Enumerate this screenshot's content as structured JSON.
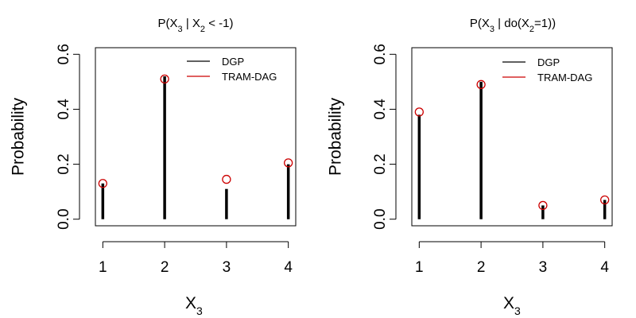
{
  "colors": {
    "dgp": "#000000",
    "tram_dag": "#cc0000"
  },
  "chart_data": [
    {
      "type": "bar",
      "title_parts": [
        "P(X",
        "3",
        " | X",
        "2",
        " < -1)"
      ],
      "xlabel": "X",
      "xlabel_sub": "3",
      "ylabel": "Probability",
      "categories": [
        "1",
        "2",
        "3",
        "4"
      ],
      "xlim": [
        1,
        4
      ],
      "ylim": [
        0,
        0.6
      ],
      "y_ticks": [
        "0.0",
        "0.2",
        "0.4",
        "0.6"
      ],
      "grid": false,
      "legend_position": "top-right",
      "series": [
        {
          "name": "DGP",
          "style": "vertical-lines",
          "values": [
            0.13,
            0.52,
            0.11,
            0.2
          ]
        },
        {
          "name": "TRAM-DAG",
          "style": "open-circles",
          "values": [
            0.13,
            0.51,
            0.145,
            0.205
          ]
        }
      ]
    },
    {
      "type": "bar",
      "title_parts": [
        "P(X",
        "3",
        " | do(X",
        "2",
        "=1))"
      ],
      "xlabel": "X",
      "xlabel_sub": "3",
      "ylabel": "Probability",
      "categories": [
        "1",
        "2",
        "3",
        "4"
      ],
      "xlim": [
        1,
        4
      ],
      "ylim": [
        0,
        0.6
      ],
      "y_ticks": [
        "0.0",
        "0.2",
        "0.4",
        "0.6"
      ],
      "grid": false,
      "legend_position": "top-right",
      "series": [
        {
          "name": "DGP",
          "style": "vertical-lines",
          "values": [
            0.38,
            0.5,
            0.05,
            0.07
          ]
        },
        {
          "name": "TRAM-DAG",
          "style": "open-circles",
          "values": [
            0.39,
            0.49,
            0.05,
            0.07
          ]
        }
      ]
    }
  ]
}
